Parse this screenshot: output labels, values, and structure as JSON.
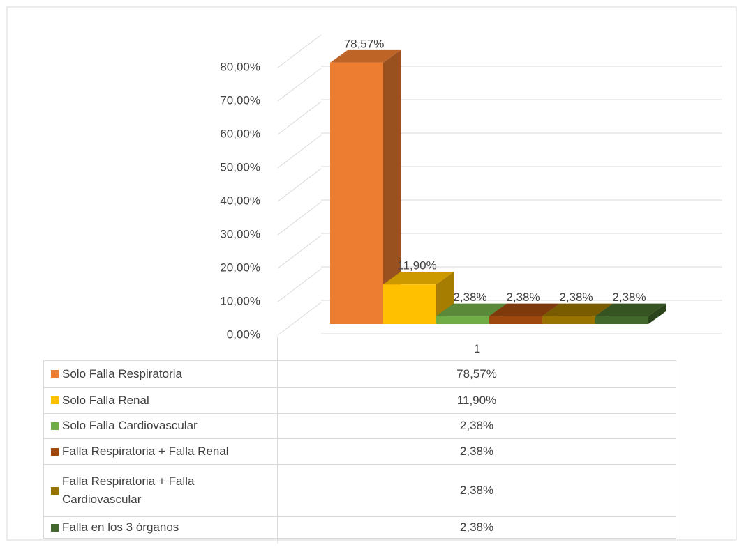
{
  "chart_data": {
    "type": "bar3d",
    "categories": [
      "1"
    ],
    "series": [
      {
        "name": "Solo Falla Respiratoria",
        "color": "#ed7d31",
        "values": [
          78.57
        ],
        "value_labels": [
          "78,57%"
        ]
      },
      {
        "name": "Solo Falla Renal",
        "color": "#ffc000",
        "values": [
          11.9
        ],
        "value_labels": [
          "11,90%"
        ]
      },
      {
        "name": "Solo Falla Cardiovascular",
        "color": "#70ad47",
        "values": [
          2.38
        ],
        "value_labels": [
          "2,38%"
        ]
      },
      {
        "name": "Falla Respiratoria + Falla Renal",
        "color": "#9e480e",
        "values": [
          2.38
        ],
        "value_labels": [
          "2,38%"
        ]
      },
      {
        "name": "Falla Respiratoria + Falla Cardiovascular",
        "color": "#997300",
        "values": [
          2.38
        ],
        "value_labels": [
          "2,38%"
        ]
      },
      {
        "name": "Falla en los 3 órganos",
        "color": "#43682b",
        "values": [
          2.38
        ],
        "value_labels": [
          "2,38%"
        ]
      }
    ],
    "ylim": [
      0,
      80
    ],
    "yticks": [
      {
        "value": 0,
        "label": "0,00%"
      },
      {
        "value": 10,
        "label": "10,00%"
      },
      {
        "value": 20,
        "label": "20,00%"
      },
      {
        "value": 30,
        "label": "30,00%"
      },
      {
        "value": 40,
        "label": "40,00%"
      },
      {
        "value": 50,
        "label": "50,00%"
      },
      {
        "value": 60,
        "label": "60,00%"
      },
      {
        "value": 70,
        "label": "70,00%"
      },
      {
        "value": 80,
        "label": "80,00%"
      }
    ],
    "grid": true,
    "data_table": true
  }
}
